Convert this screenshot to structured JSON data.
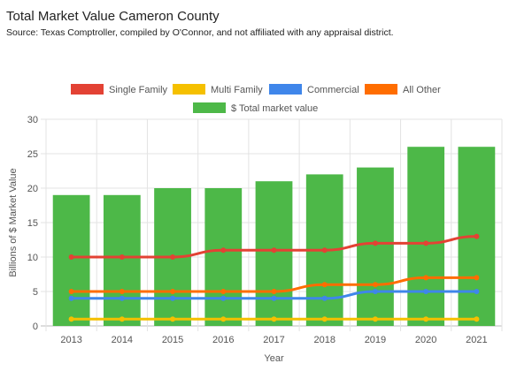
{
  "header": {
    "title": "Total Market Value Cameron County",
    "subtitle": "Source: Texas Comptroller, compiled by O'Connor, and not affiliated with any appraisal district."
  },
  "chart_data": {
    "type": "bar",
    "xlabel": "Year",
    "ylabel": "Billions of $ Market Value",
    "ylim": [
      0,
      30
    ],
    "yticks": [
      0,
      5,
      10,
      15,
      20,
      25,
      30
    ],
    "grid": true,
    "legend_position": "top",
    "categories": [
      "2013",
      "2014",
      "2015",
      "2016",
      "2017",
      "2018",
      "2019",
      "2020",
      "2021"
    ],
    "bar_series": {
      "name": "$ Total market value",
      "color": "#4db848",
      "values": [
        19,
        19,
        20,
        20,
        21,
        22,
        23,
        26,
        26
      ]
    },
    "line_series": [
      {
        "name": "Single Family",
        "color": "#e34234",
        "values": [
          10,
          10,
          10,
          11,
          11,
          11,
          12,
          12,
          13
        ]
      },
      {
        "name": "Multi Family",
        "color": "#f5c000",
        "values": [
          1,
          1,
          1,
          1,
          1,
          1,
          1,
          1,
          1
        ]
      },
      {
        "name": "Commercial",
        "color": "#3f86ea",
        "values": [
          4,
          4,
          4,
          4,
          4,
          4,
          5,
          5,
          5
        ]
      },
      {
        "name": "All Other",
        "color": "#ff6d00",
        "values": [
          5,
          5,
          5,
          5,
          5,
          6,
          6,
          7,
          7
        ]
      }
    ]
  }
}
